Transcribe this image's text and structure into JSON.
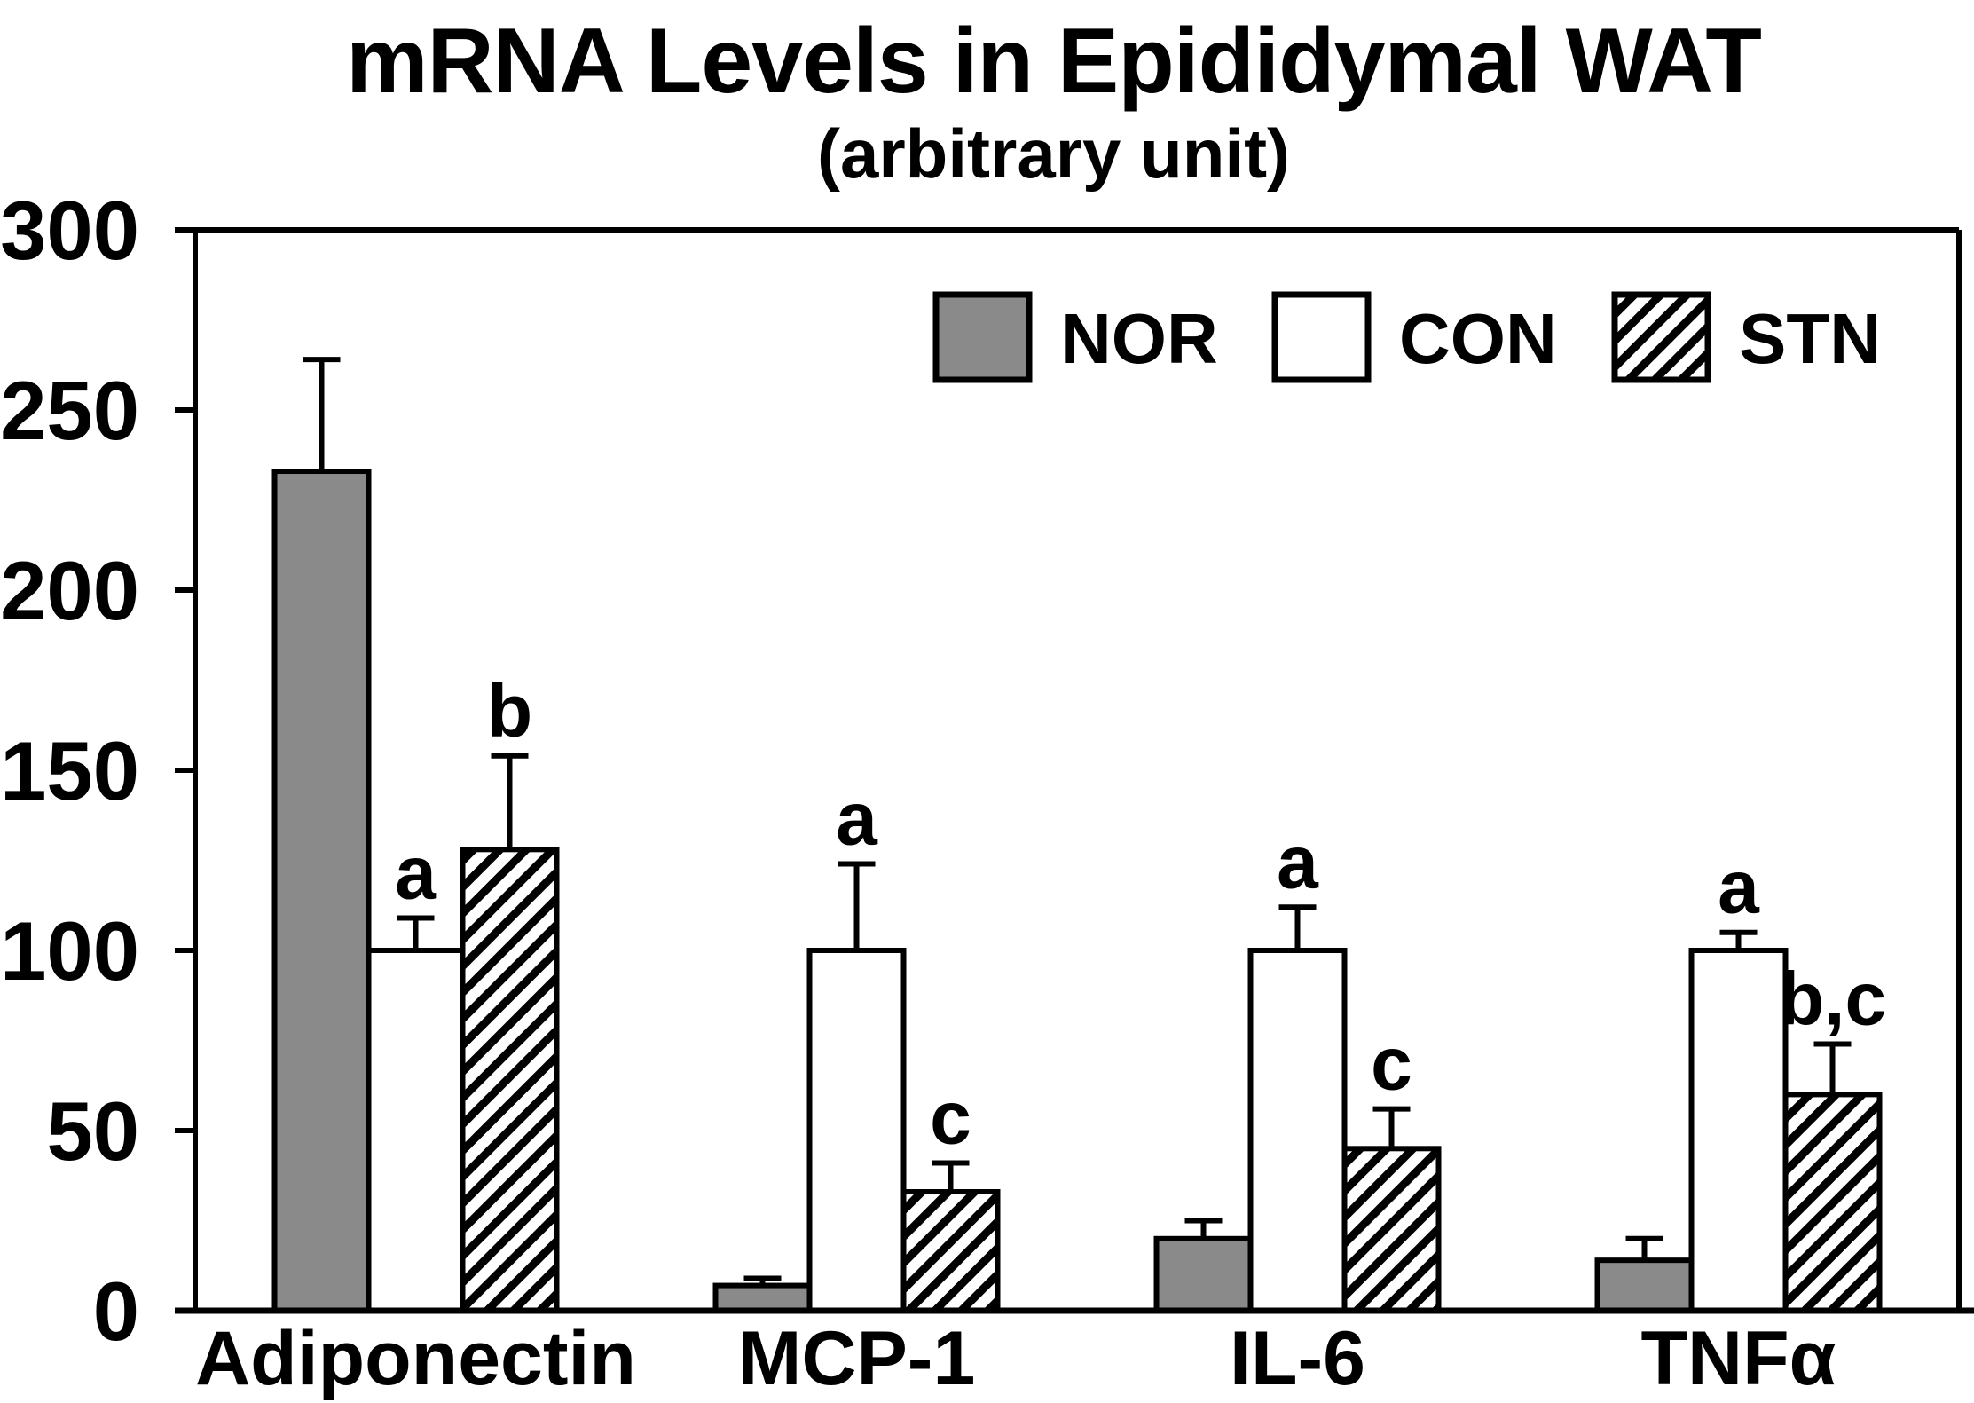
{
  "figure": {
    "title": "mRNA Levels in Epididymal WAT",
    "subtitle": "(arbitrary unit)"
  },
  "chart_data": {
    "type": "bar",
    "title": "mRNA Levels in Epididymal WAT",
    "subtitle": "(arbitrary unit)",
    "categories": [
      "Adiponectin",
      "MCP-1",
      "IL-6",
      "TNFα"
    ],
    "series": [
      {
        "name": "NOR",
        "fill_style": "solid-gray",
        "fill_color": "#8a8a8a",
        "values": [
          233,
          7,
          20,
          14
        ],
        "errors_plus": [
          31,
          2,
          5,
          6
        ],
        "letters": [
          "",
          "",
          "",
          ""
        ]
      },
      {
        "name": "CON",
        "fill_style": "solid-white",
        "fill_color": "#ffffff",
        "values": [
          100,
          100,
          100,
          100
        ],
        "errors_plus": [
          9,
          24,
          12,
          5
        ],
        "letters": [
          "a",
          "a",
          "a",
          "a"
        ]
      },
      {
        "name": "STN",
        "fill_style": "diagonal-hatch",
        "fill_color": "#ffffff",
        "hatch_color": "#000000",
        "values": [
          128,
          33,
          45,
          60
        ],
        "errors_plus": [
          26,
          8,
          11,
          14
        ],
        "letters": [
          "b",
          "c",
          "c",
          "b,c"
        ]
      }
    ],
    "ylim": [
      0,
      300
    ],
    "ytick_step": 50,
    "ytick_labels": [
      "0",
      "50",
      "100",
      "150",
      "200",
      "250",
      "300"
    ],
    "xlabel": "",
    "ylabel": "",
    "grid": false,
    "legend": {
      "entries": [
        "NOR",
        "CON",
        "STN"
      ],
      "position": "top-right-inside"
    },
    "axis_color": "#000000",
    "error_bars": "plus-only"
  }
}
